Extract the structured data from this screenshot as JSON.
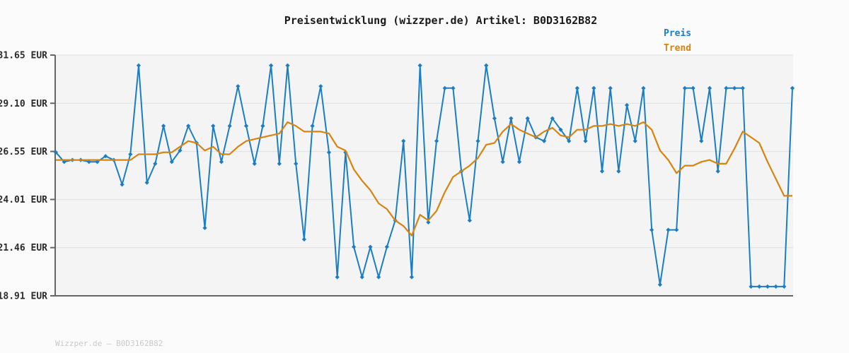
{
  "chart": {
    "title": "Preisentwicklung (wizzper.de) Artikel: B0D3162B82",
    "watermark": "Wizzper.de — B0D3162B82",
    "legend": [
      {
        "label": "Preis",
        "color": "#1b7ec3"
      },
      {
        "label": "Trend",
        "color": "#d9830f"
      }
    ],
    "colors": {
      "figure_background": "#fbfbfb",
      "plot_background": "#f4f4f5",
      "gridline": "#e3e3e3",
      "spine": "#666666",
      "tick_label": "#2b2b2b",
      "watermark": "#c9c9c9"
    }
  },
  "chart_data": {
    "type": "line",
    "title": "Preisentwicklung (wizzper.de) Artikel: B0D3162B82",
    "xlabel": "",
    "ylabel": "",
    "x_tick_labels": [],
    "ylim": [
      18.91,
      31.65
    ],
    "yticks": [
      31.65,
      29.1,
      26.55,
      24.01,
      21.46,
      18.91
    ],
    "ytick_labels": [
      "31.65 EUR",
      "29.10 EUR",
      "26.55 EUR",
      "24.01 EUR",
      "21.46 EUR",
      "18.91 EUR"
    ],
    "grid": true,
    "legend_position": "top-right",
    "series": [
      {
        "name": "Preis",
        "color": "#1b7ec3",
        "marker": "diamond",
        "values": [
          26.5,
          26.0,
          26.1,
          26.1,
          26.0,
          26.0,
          26.3,
          26.1,
          24.8,
          26.4,
          31.1,
          24.9,
          25.9,
          27.9,
          26.0,
          26.6,
          27.9,
          27.0,
          22.5,
          27.9,
          26.0,
          27.9,
          30.0,
          27.9,
          25.9,
          27.9,
          31.1,
          25.9,
          31.1,
          25.9,
          21.9,
          27.9,
          30.0,
          26.5,
          19.9,
          26.5,
          21.5,
          19.9,
          21.5,
          19.9,
          21.5,
          22.9,
          27.1,
          19.9,
          31.1,
          22.8,
          27.1,
          29.9,
          29.9,
          25.5,
          22.9,
          27.1,
          31.1,
          28.3,
          26.0,
          28.3,
          26.0,
          28.3,
          27.3,
          27.1,
          28.3,
          27.7,
          27.1,
          29.9,
          27.1,
          29.9,
          25.5,
          29.9,
          25.5,
          29.0,
          27.1,
          29.9,
          22.4,
          19.5,
          22.4,
          22.4,
          29.9,
          29.9,
          27.1,
          29.9,
          25.5,
          29.9,
          29.9,
          29.9,
          19.4,
          19.4,
          19.4,
          19.4,
          19.4,
          29.9
        ]
      },
      {
        "name": "Trend",
        "color": "#d9830f",
        "marker": "none",
        "values": [
          26.1,
          26.1,
          26.1,
          26.1,
          26.1,
          26.1,
          26.1,
          26.1,
          26.1,
          26.1,
          26.4,
          26.4,
          26.4,
          26.5,
          26.5,
          26.8,
          27.1,
          27.0,
          26.6,
          26.8,
          26.4,
          26.4,
          26.8,
          27.1,
          27.2,
          27.3,
          27.4,
          27.5,
          28.1,
          27.9,
          27.6,
          27.6,
          27.6,
          27.5,
          26.8,
          26.6,
          25.6,
          25.0,
          24.5,
          23.8,
          23.5,
          22.9,
          22.6,
          22.1,
          23.2,
          22.9,
          23.4,
          24.4,
          25.2,
          25.5,
          25.8,
          26.2,
          26.9,
          27.0,
          27.6,
          28.0,
          27.7,
          27.5,
          27.3,
          27.6,
          27.8,
          27.4,
          27.3,
          27.7,
          27.7,
          27.9,
          27.9,
          28.0,
          27.9,
          28.0,
          27.9,
          28.1,
          27.7,
          26.6,
          26.1,
          25.4,
          25.8,
          25.8,
          26.0,
          26.1,
          25.9,
          25.9,
          26.7,
          27.6,
          27.3,
          27.0,
          26.0,
          25.1,
          24.2,
          24.2
        ]
      }
    ]
  }
}
